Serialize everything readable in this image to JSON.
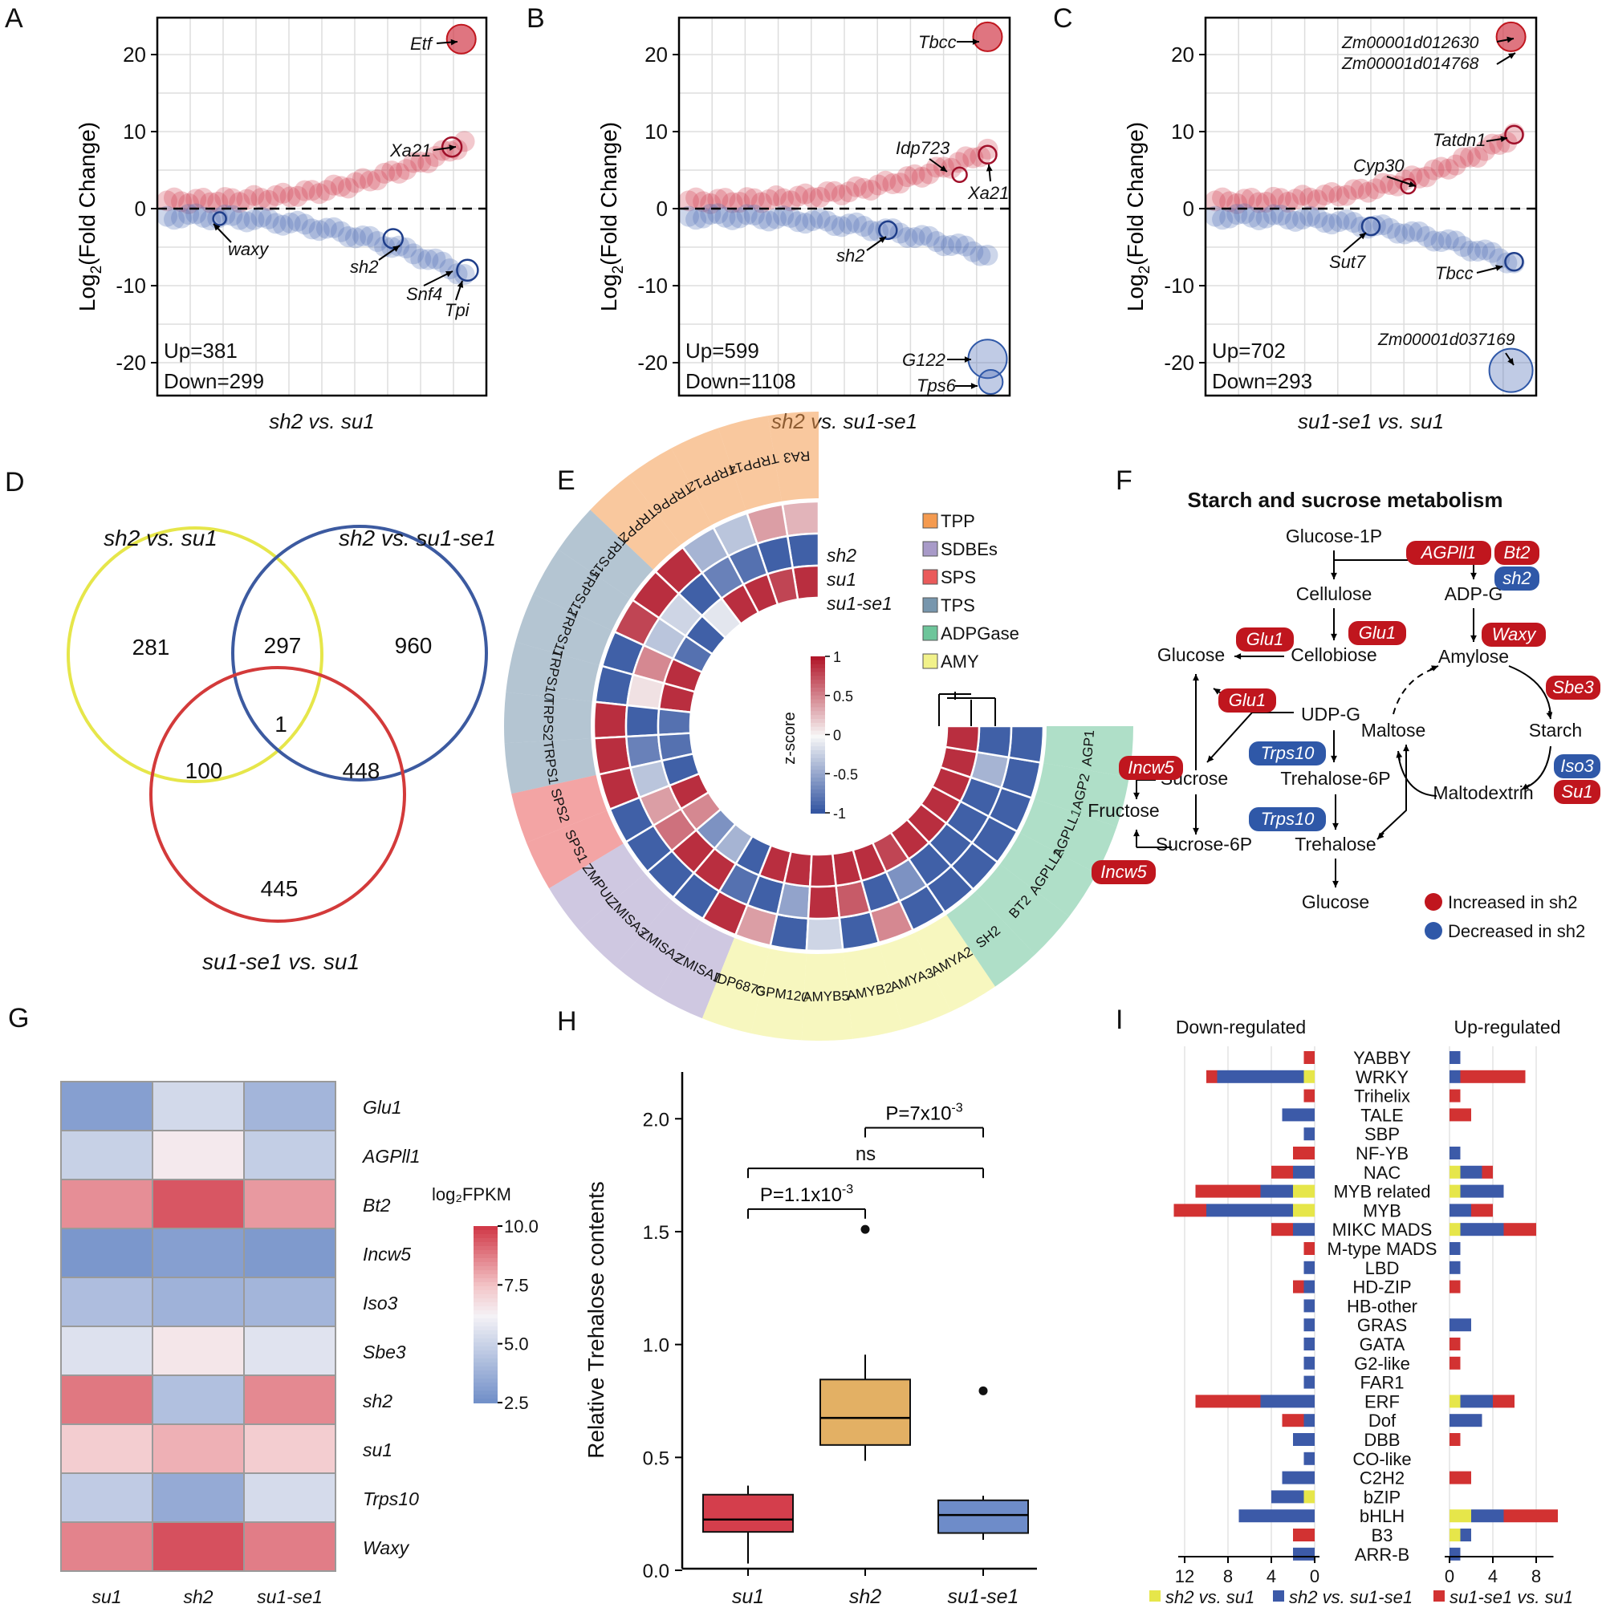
{
  "colors": {
    "up": "#d23a4a",
    "down": "#4a6bb5",
    "yellow": "#e6e64a",
    "grid": "#dddddd",
    "blue_node": "#2f58a8",
    "red_node": "#c0161e",
    "tpp": "#f49a4f",
    "sdbe": "#a89ac8",
    "sps": "#ea5a5a",
    "tps": "#7796ad",
    "adpg": "#6dc59a",
    "amy": "#f1f18a"
  },
  "panels": {
    "A": {
      "letter": "A",
      "xlabel": "sh2 vs. su1",
      "ylabel": "Log₂(Fold Change)",
      "ylabel_pre": "Log",
      "ylabel_sub": "2",
      "ylabel_post": "(Fold Change)",
      "up": "Up=381",
      "down": "Down=299",
      "yticks": [
        "20",
        "10",
        "0",
        "-10",
        "-20"
      ],
      "labels": [
        {
          "text": "Etf",
          "x": 0.93,
          "y": 22
        },
        {
          "text": "Xa21",
          "x": 0.93,
          "y": 8
        },
        {
          "text": "waxy",
          "x": 0.17,
          "y": -1.5
        },
        {
          "text": "sh2",
          "x": 0.75,
          "y": -4
        },
        {
          "text": "Snf4",
          "x": 0.94,
          "y": -8
        },
        {
          "text": "Tpi",
          "x": 0.95,
          "y": -8
        }
      ],
      "up_max": 8.5,
      "down_min": -8.5,
      "big_up": {
        "x": 0.95,
        "y": 22,
        "r": 3
      },
      "big_down": []
    },
    "B": {
      "letter": "B",
      "xlabel": "sh2 vs. su1-se1",
      "ylabel": "Log₂(Fold Change)",
      "ylabel_pre": "Log",
      "ylabel_sub": "2",
      "ylabel_post": "(Fold Change)",
      "up": "Up=599",
      "down": "Down=1108",
      "yticks": [
        "20",
        "10",
        "0",
        "-10",
        "-20"
      ],
      "labels": [
        {
          "text": "Tbcc",
          "x": 0.95,
          "y": 22
        },
        {
          "text": "Idp723",
          "x": 0.87,
          "y": 4.5
        },
        {
          "text": "Xa21",
          "x": 0.96,
          "y": 7
        },
        {
          "text": "sh2",
          "x": 0.63,
          "y": -3
        },
        {
          "text": "G122",
          "x": 0.96,
          "y": -19.5
        },
        {
          "text": "Tps6",
          "x": 0.97,
          "y": -22.5
        }
      ],
      "up_max": 7.5,
      "down_min": -6,
      "big_up": {
        "x": 0.96,
        "y": 22.3,
        "r": 3
      },
      "big_down": [
        {
          "x": 0.96,
          "y": -19.5,
          "r": 4
        },
        {
          "x": 0.97,
          "y": -22.5,
          "r": 2.5
        }
      ]
    },
    "C": {
      "letter": "C",
      "xlabel": "su1-se1 vs. su1",
      "ylabel": "Log₂(Fold Change)",
      "ylabel_pre": "Log",
      "ylabel_sub": "2",
      "ylabel_post": "(Fold Change)",
      "up": "Up=702",
      "down": "Down=293",
      "yticks": [
        "20",
        "10",
        "0",
        "-10",
        "-20"
      ],
      "labels": [
        {
          "text": "Zm00001d012630",
          "x": 0.95,
          "y": 22
        },
        {
          "text": "Zm00001d014768",
          "x": 0.95,
          "y": 21
        },
        {
          "text": "Tatdn1",
          "x": 0.95,
          "y": 9.5
        },
        {
          "text": "Cyp30",
          "x": 0.63,
          "y": 3
        },
        {
          "text": "Sut7",
          "x": 0.51,
          "y": -2.3
        },
        {
          "text": "Tbcc",
          "x": 0.95,
          "y": -6.8
        },
        {
          "text": "Zm00001d037169",
          "x": 0.95,
          "y": -21
        }
      ],
      "up_max": 9.5,
      "down_min": -7,
      "big_up": {
        "x": 0.95,
        "y": 22.3,
        "r": 3
      },
      "big_down": [
        {
          "x": 0.95,
          "y": -21,
          "r": 4.5
        }
      ]
    },
    "D": {
      "letter": "D",
      "sets": [
        "sh2 vs. su1",
        "sh2 vs. su1-se1",
        "su1-se1 vs. su1"
      ],
      "counts": {
        "a_only": "281",
        "ab": "297",
        "b_only": "960",
        "abc": "1",
        "ac": "100",
        "bc": "448",
        "c_only": "445"
      }
    },
    "E": {
      "letter": "E",
      "legend": [
        "TPP",
        "SDBEs",
        "SPS",
        "TPS",
        "ADPGase",
        "AMY"
      ],
      "rows": [
        "sh2",
        "su1",
        "su1-se1"
      ],
      "colorbar_title": "z-score",
      "colorbar_ticks": [
        "1",
        "0.5",
        "0",
        "-0.5",
        "-1"
      ],
      "genes": [
        {
          "name": "RA3",
          "group": 0,
          "v": [
            0.3,
            -0.9,
            0.9
          ]
        },
        {
          "name": "TRPP14",
          "group": 0,
          "v": [
            0.4,
            -0.9,
            0.8
          ]
        },
        {
          "name": "TRPP12",
          "group": 0,
          "v": [
            -0.3,
            -0.8,
            0.9
          ]
        },
        {
          "name": "TRPP6",
          "group": 0,
          "v": [
            -0.4,
            -0.7,
            0.9
          ]
        },
        {
          "name": "TRPP2",
          "group": 0,
          "v": [
            0.9,
            -0.9,
            -0.1
          ]
        },
        {
          "name": "TRPS15",
          "group": 3,
          "v": [
            0.9,
            -0.2,
            -0.9
          ]
        },
        {
          "name": "TRPS12",
          "group": 3,
          "v": [
            0.8,
            -0.3,
            -0.8
          ]
        },
        {
          "name": "TRPS11",
          "group": 3,
          "v": [
            -0.9,
            0.5,
            0.9
          ]
        },
        {
          "name": "TRPS10",
          "group": 3,
          "v": [
            -0.9,
            0.1,
            0.9
          ]
        },
        {
          "name": "TRPS2",
          "group": 3,
          "v": [
            0.9,
            -0.9,
            -0.8
          ]
        },
        {
          "name": "TRPS1",
          "group": 3,
          "v": [
            0.9,
            -0.7,
            -0.8
          ]
        },
        {
          "name": "SPS2",
          "group": 2,
          "v": [
            0.9,
            -0.3,
            -0.9
          ]
        },
        {
          "name": "SPS1",
          "group": 2,
          "v": [
            -0.9,
            0.4,
            0.9
          ]
        },
        {
          "name": "ZMPUL",
          "group": 1,
          "v": [
            -0.9,
            0.6,
            0.5
          ]
        },
        {
          "name": "ZMISA3",
          "group": 1,
          "v": [
            -0.9,
            0.9,
            -0.6
          ]
        },
        {
          "name": "ZMISA2",
          "group": 1,
          "v": [
            -0.9,
            0.9,
            -0.4
          ]
        },
        {
          "name": "ZMISA1",
          "group": 1,
          "v": [
            0.9,
            -0.8,
            -0.9
          ]
        },
        {
          "name": "IDP6873",
          "group": 5,
          "v": [
            0.4,
            -0.9,
            0.9
          ]
        },
        {
          "name": "GPM120",
          "group": 5,
          "v": [
            -0.9,
            -0.5,
            0.9
          ]
        },
        {
          "name": "AMYB5",
          "group": 5,
          "v": [
            -0.2,
            0.9,
            0.9
          ]
        },
        {
          "name": "AMYB2",
          "group": 5,
          "v": [
            -0.9,
            0.7,
            0.9
          ]
        },
        {
          "name": "AMYA3",
          "group": 5,
          "v": [
            0.5,
            -0.9,
            0.9
          ]
        },
        {
          "name": "AMYA2",
          "group": 5,
          "v": [
            -0.9,
            -0.6,
            0.8
          ]
        },
        {
          "name": "SH2",
          "group": 4,
          "v": [
            -0.9,
            -0.9,
            0.9
          ]
        },
        {
          "name": "BT2",
          "group": 4,
          "v": [
            -0.9,
            -0.9,
            0.9
          ]
        },
        {
          "name": "AGPLL2",
          "group": 4,
          "v": [
            -0.9,
            -0.9,
            0.9
          ]
        },
        {
          "name": "AGPLL1",
          "group": 4,
          "v": [
            -0.9,
            -0.9,
            0.9
          ]
        },
        {
          "name": "AGP2",
          "group": 4,
          "v": [
            -0.9,
            -0.4,
            0.9
          ]
        },
        {
          "name": "AGP1",
          "group": 4,
          "v": [
            -0.9,
            -0.9,
            0.9
          ]
        }
      ]
    },
    "F": {
      "letter": "F",
      "title": "Starch and sucrose metabolism",
      "nodes": {
        "glc1p": "Glucose-1P",
        "cellulose": "Cellulose",
        "adpg": "ADP-G",
        "cellobiose": "Cellobiose",
        "glucose": "Glucose",
        "amylose": "Amylose",
        "udpg": "UDP-G",
        "maltose": "Maltose",
        "starch": "Starch",
        "sucrose": "Sucrose",
        "t6p": "Trehalose-6P",
        "fructose": "Fructose",
        "maltodextrin": "Maltodextrin",
        "s6p": "Sucrose-6P",
        "trehalose": "Trehalose",
        "glucose2": "Glucose"
      },
      "badges": {
        "agpll1": "AGPll1",
        "bt2": "Bt2",
        "sh2": "sh2",
        "glu1a": "Glu1",
        "glu1b": "Glu1",
        "glu1c": "Glu1",
        "waxy": "Waxy",
        "sbe3": "Sbe3",
        "incw5a": "Incw5",
        "incw5b": "Incw5",
        "trps10a": "Trps10",
        "trps10b": "Trps10",
        "iso3": "Iso3",
        "su1": "Su1"
      },
      "legend_up": "Increased in sh2",
      "legend_down": "Decreased in sh2"
    },
    "G": {
      "letter": "G",
      "genes": [
        "Glu1",
        "AGPll1",
        "Bt2",
        "Incw5",
        "Iso3",
        "Sbe3",
        "sh2",
        "su1",
        "Trps10",
        "Waxy"
      ],
      "samples": [
        "su1",
        "sh2",
        "su1-se1"
      ],
      "values": [
        [
          3.2,
          5.3,
          4.0
        ],
        [
          5.0,
          6.5,
          4.9
        ],
        [
          8.5,
          9.5,
          8.3
        ],
        [
          2.9,
          3.2,
          3.0
        ],
        [
          4.3,
          3.9,
          4.0
        ],
        [
          5.6,
          6.6,
          5.7
        ],
        [
          8.9,
          4.4,
          8.6
        ],
        [
          7.3,
          7.9,
          7.3
        ],
        [
          4.8,
          3.6,
          5.4
        ],
        [
          8.7,
          9.6,
          8.8
        ]
      ],
      "legend_title": "log₂FPKM",
      "legend_ticks": [
        "10.0",
        "7.5",
        "5.0",
        "2.5"
      ],
      "vmin": 2.5,
      "vmax": 10
    },
    "H": {
      "letter": "H",
      "ylabel": "Relative Trehalose contents",
      "yticks": [
        "0.0",
        "0.5",
        "1.0",
        "1.5",
        "2.0"
      ],
      "categories": [
        "su1",
        "sh2",
        "su1-se1"
      ],
      "boxes": [
        {
          "q1": 0.17,
          "med": 0.225,
          "q3": 0.335,
          "lo": 0.03,
          "hi": 0.375,
          "out": []
        },
        {
          "q1": 0.555,
          "med": 0.675,
          "q3": 0.845,
          "lo": 0.485,
          "hi": 0.955,
          "out": [
            1.51
          ]
        },
        {
          "q1": 0.165,
          "med": 0.245,
          "q3": 0.31,
          "lo": 0.135,
          "hi": 0.33,
          "out": [
            0.795
          ]
        }
      ],
      "box_colors": [
        "#d43e4c",
        "#e3b064",
        "#6e8cc9"
      ],
      "sig": [
        {
          "label_pre": "P=1.1x10",
          "label_sup": "-3",
          "a": 0,
          "b": 1,
          "y": 1.6
        },
        {
          "label": "ns",
          "a": 0,
          "b": 2,
          "y": 1.78
        },
        {
          "label_pre": "P=7x10",
          "label_sup": "-3",
          "a": 1,
          "b": 2,
          "y": 1.96
        }
      ]
    },
    "I": {
      "letter": "I",
      "left_title": "Down-regulated",
      "right_title": "Up-regulated",
      "xticks_left": [
        "12",
        "8",
        "4",
        "0"
      ],
      "xticks_right": [
        "0",
        "4",
        "8"
      ],
      "legend": [
        "sh2 vs. su1",
        "sh2 vs. su1-se1",
        "su1-se1 vs. su1"
      ],
      "families": [
        "YABBY",
        "WRKY",
        "Trihelix",
        "TALE",
        "SBP",
        "NF-YB",
        "NAC",
        "MYB related",
        "MYB",
        "MIKC MADS",
        "M-type MADS",
        "LBD",
        "HD-ZIP",
        "HB-other",
        "GRAS",
        "GATA",
        "G2-like",
        "FAR1",
        "ERF",
        "Dof",
        "DBB",
        "CO-like",
        "C2H2",
        "bZIP",
        "bHLH",
        "B3",
        "ARR-B"
      ],
      "down": [
        [
          0,
          0,
          1
        ],
        [
          1,
          8,
          1
        ],
        [
          0,
          0,
          1
        ],
        [
          0,
          3,
          0
        ],
        [
          0,
          1,
          0
        ],
        [
          0,
          0,
          2
        ],
        [
          0,
          2,
          2
        ],
        [
          2,
          3,
          6
        ],
        [
          2,
          8,
          3
        ],
        [
          0,
          2,
          2
        ],
        [
          0,
          0,
          1
        ],
        [
          0,
          1,
          0
        ],
        [
          0,
          1,
          1
        ],
        [
          0,
          1,
          0
        ],
        [
          0,
          1,
          0
        ],
        [
          0,
          1,
          0
        ],
        [
          0,
          1,
          0
        ],
        [
          0,
          1,
          0
        ],
        [
          0,
          5,
          6
        ],
        [
          0,
          1,
          2
        ],
        [
          0,
          2,
          0
        ],
        [
          0,
          1,
          0
        ],
        [
          0,
          3,
          0
        ],
        [
          1,
          3,
          0
        ],
        [
          0,
          7,
          0
        ],
        [
          0,
          0,
          2
        ],
        [
          0,
          2,
          0
        ]
      ],
      "up": [
        [
          0,
          1,
          0
        ],
        [
          0,
          1,
          6
        ],
        [
          0,
          0,
          1
        ],
        [
          0,
          0,
          2
        ],
        [
          0,
          0,
          0
        ],
        [
          0,
          1,
          0
        ],
        [
          1,
          2,
          1
        ],
        [
          1,
          4,
          0
        ],
        [
          0,
          2,
          2
        ],
        [
          1,
          4,
          3
        ],
        [
          0,
          1,
          0
        ],
        [
          0,
          1,
          0
        ],
        [
          0,
          0,
          1
        ],
        [
          0,
          0,
          0
        ],
        [
          0,
          2,
          0
        ],
        [
          0,
          0,
          1
        ],
        [
          0,
          0,
          1
        ],
        [
          0,
          0,
          0
        ],
        [
          1,
          3,
          2
        ],
        [
          0,
          3,
          0
        ],
        [
          0,
          0,
          1
        ],
        [
          0,
          0,
          0
        ],
        [
          0,
          0,
          2
        ],
        [
          0,
          0,
          0
        ],
        [
          2,
          3,
          5
        ],
        [
          1,
          1,
          0
        ],
        [
          0,
          1,
          0
        ]
      ]
    }
  },
  "chart_data": [
    {
      "type": "scatter",
      "panel": "A",
      "title": "sh2 vs. su1",
      "ylabel": "Log2(Fold Change)",
      "ylim": [
        -24,
        24
      ],
      "up_count": 381,
      "down_count": 299,
      "annotations": {
        "Etf": 22,
        "Xa21": 8,
        "waxy": -1.5,
        "sh2": -4,
        "Snf4": -8,
        "Tpi": -8
      }
    },
    {
      "type": "scatter",
      "panel": "B",
      "title": "sh2 vs. su1-se1",
      "ylabel": "Log2(Fold Change)",
      "ylim": [
        -24,
        24
      ],
      "up_count": 599,
      "down_count": 1108,
      "annotations": {
        "Tbcc": 22,
        "Idp723": 4.5,
        "Xa21": 7,
        "sh2": -3,
        "G122": -19.5,
        "Tps6": -22.5
      }
    },
    {
      "type": "scatter",
      "panel": "C",
      "title": "su1-se1 vs. su1",
      "ylabel": "Log2(Fold Change)",
      "ylim": [
        -24,
        24
      ],
      "up_count": 702,
      "down_count": 293,
      "annotations": {
        "Zm00001d012630": 22,
        "Zm00001d014768": 21,
        "Tatdn1": 9.5,
        "Cyp30": 3,
        "Sut7": -2.3,
        "Tbcc": -6.8,
        "Zm00001d037169": -21
      }
    },
    {
      "type": "venn",
      "panel": "D",
      "sets": [
        "sh2 vs. su1",
        "sh2 vs. su1-se1",
        "su1-se1 vs. su1"
      ],
      "regions": {
        "A": 281,
        "AB": 297,
        "B": 960,
        "ABC": 1,
        "AC": 100,
        "BC": 448,
        "C": 445
      }
    },
    {
      "type": "heatmap",
      "panel": "E",
      "layout": "circular",
      "rows": [
        "sh2",
        "su1",
        "su1-se1"
      ],
      "scale": "z-score",
      "range": [
        -1,
        1
      ]
    },
    {
      "type": "heatmap",
      "panel": "G",
      "rows": [
        "Glu1",
        "AGPll1",
        "Bt2",
        "Incw5",
        "Iso3",
        "Sbe3",
        "sh2",
        "su1",
        "Trps10",
        "Waxy"
      ],
      "cols": [
        "su1",
        "sh2",
        "su1-se1"
      ],
      "scale": "log2FPKM",
      "range": [
        2.5,
        10
      ]
    },
    {
      "type": "box",
      "panel": "H",
      "categories": [
        "su1",
        "sh2",
        "su1-se1"
      ],
      "ylabel": "Relative Trehalose contents",
      "ylim": [
        0,
        2.2
      ],
      "medians": [
        0.225,
        0.675,
        0.245
      ]
    },
    {
      "type": "bar",
      "panel": "I",
      "orientation": "horizontal",
      "categories": [
        "YABBY",
        "WRKY",
        "Trihelix",
        "TALE",
        "SBP",
        "NF-YB",
        "NAC",
        "MYB related",
        "MYB",
        "MIKC MADS",
        "M-type MADS",
        "LBD",
        "HD-ZIP",
        "HB-other",
        "GRAS",
        "GATA",
        "G2-like",
        "FAR1",
        "ERF",
        "Dof",
        "DBB",
        "CO-like",
        "C2H2",
        "bZIP",
        "bHLH",
        "B3",
        "ARR-B"
      ],
      "series": [
        "sh2 vs. su1",
        "sh2 vs. su1-se1",
        "su1-se1 vs. su1"
      ]
    }
  ]
}
